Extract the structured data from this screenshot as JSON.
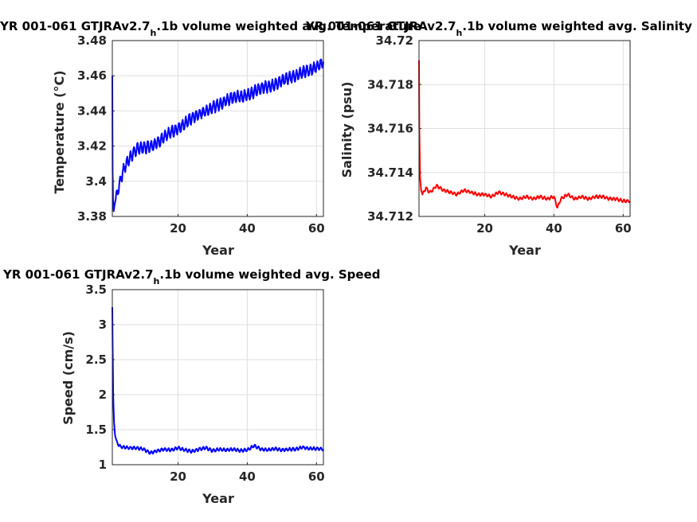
{
  "chart_data": [
    {
      "type": "line",
      "title_prefix": "YR 001-061 GTJRAv2.7",
      "title_sub": "h",
      "title_suffix": ".1b volume weighted avg. Temperature",
      "xlabel": "Year",
      "ylabel": "Temperature (°C)",
      "xlim": [
        1,
        62
      ],
      "ylim": [
        3.38,
        3.48
      ],
      "xticks": [
        "20",
        "40",
        "60"
      ],
      "yticks": [
        "3.38",
        "3.4",
        "3.42",
        "3.44",
        "3.46",
        "3.48"
      ],
      "grid": true,
      "color": "#0000ff",
      "series": [
        {
          "x": [
            1,
            1.05,
            1.1,
            1.2,
            1.4,
            1.6,
            2,
            2.5,
            3,
            4,
            5,
            6,
            7,
            8,
            9,
            10,
            12,
            14,
            16,
            18,
            20,
            22,
            24,
            26,
            28,
            30,
            32,
            34,
            36,
            38,
            40,
            42,
            44,
            46,
            48,
            50,
            52,
            54,
            56,
            58,
            60,
            62
          ],
          "y": [
            3.46,
            3.43,
            3.405,
            3.39,
            3.383,
            3.386,
            3.39,
            3.394,
            3.398,
            3.405,
            3.41,
            3.413,
            3.416,
            3.418,
            3.419,
            3.419,
            3.42,
            3.422,
            3.425,
            3.428,
            3.43,
            3.433,
            3.436,
            3.438,
            3.44,
            3.442,
            3.444,
            3.446,
            3.448,
            3.448,
            3.449,
            3.451,
            3.453,
            3.454,
            3.455,
            3.457,
            3.459,
            3.46,
            3.462,
            3.463,
            3.465,
            3.468
          ],
          "seasonal_amplitude": 0.003
        }
      ]
    },
    {
      "type": "line",
      "title_prefix": "YR 001-061 GTJRAv2.7",
      "title_sub": "h",
      "title_suffix": ".1b volume weighted avg. Salinity",
      "xlabel": "Year",
      "ylabel": "Salinity (psu)",
      "xlim": [
        1,
        62
      ],
      "ylim": [
        34.712,
        34.72
      ],
      "xticks": [
        "20",
        "40",
        "60"
      ],
      "yticks": [
        "34.712",
        "34.714",
        "34.716",
        "34.718",
        "34.72"
      ],
      "grid": true,
      "color": "#ff0000",
      "series": [
        {
          "x": [
            1,
            1.1,
            1.3,
            1.6,
            2,
            3,
            4,
            5,
            6,
            7,
            8,
            10,
            12,
            14,
            16,
            18,
            20,
            22,
            24,
            26,
            28,
            30,
            32,
            34,
            36,
            38,
            40,
            41,
            42,
            44,
            46,
            48,
            50,
            52,
            54,
            56,
            58,
            60,
            62
          ],
          "y": [
            34.7191,
            34.716,
            34.7138,
            34.7132,
            34.713,
            34.7133,
            34.7131,
            34.7132,
            34.7134,
            34.7133,
            34.7132,
            34.7131,
            34.713,
            34.7132,
            34.7131,
            34.713,
            34.713,
            34.7129,
            34.7131,
            34.713,
            34.7129,
            34.7128,
            34.7129,
            34.7128,
            34.7129,
            34.7128,
            34.7129,
            34.7124,
            34.7128,
            34.713,
            34.7128,
            34.7129,
            34.7128,
            34.7129,
            34.7129,
            34.7128,
            34.7128,
            34.7127,
            34.7127
          ],
          "seasonal_amplitude": 6e-05
        }
      ]
    },
    {
      "type": "line",
      "title_prefix": "YR 001-061 GTJRAv2.7",
      "title_sub": "h",
      "title_suffix": ".1b volume weighted avg. Speed",
      "xlabel": "Year",
      "ylabel": "Speed (cm/s)",
      "xlim": [
        1,
        62
      ],
      "ylim": [
        1,
        3.5
      ],
      "xticks": [
        "20",
        "40",
        "60"
      ],
      "yticks": [
        "1",
        "1.5",
        "2",
        "2.5",
        "3",
        "3.5"
      ],
      "grid": true,
      "color": "#0000ff",
      "series": [
        {
          "x": [
            1,
            1.1,
            1.25,
            1.5,
            1.8,
            2.2,
            3,
            4,
            6,
            8,
            10,
            12,
            14,
            16,
            18,
            20,
            22,
            24,
            26,
            28,
            30,
            32,
            34,
            36,
            38,
            40,
            42,
            44,
            46,
            48,
            50,
            52,
            54,
            56,
            58,
            60,
            62
          ],
          "y": [
            3.25,
            2.7,
            2.0,
            1.6,
            1.42,
            1.33,
            1.27,
            1.25,
            1.24,
            1.24,
            1.22,
            1.17,
            1.2,
            1.22,
            1.21,
            1.24,
            1.21,
            1.19,
            1.22,
            1.24,
            1.2,
            1.22,
            1.21,
            1.22,
            1.2,
            1.21,
            1.27,
            1.22,
            1.21,
            1.23,
            1.21,
            1.22,
            1.22,
            1.25,
            1.23,
            1.23,
            1.22
          ],
          "seasonal_amplitude": 0.02
        }
      ]
    }
  ]
}
